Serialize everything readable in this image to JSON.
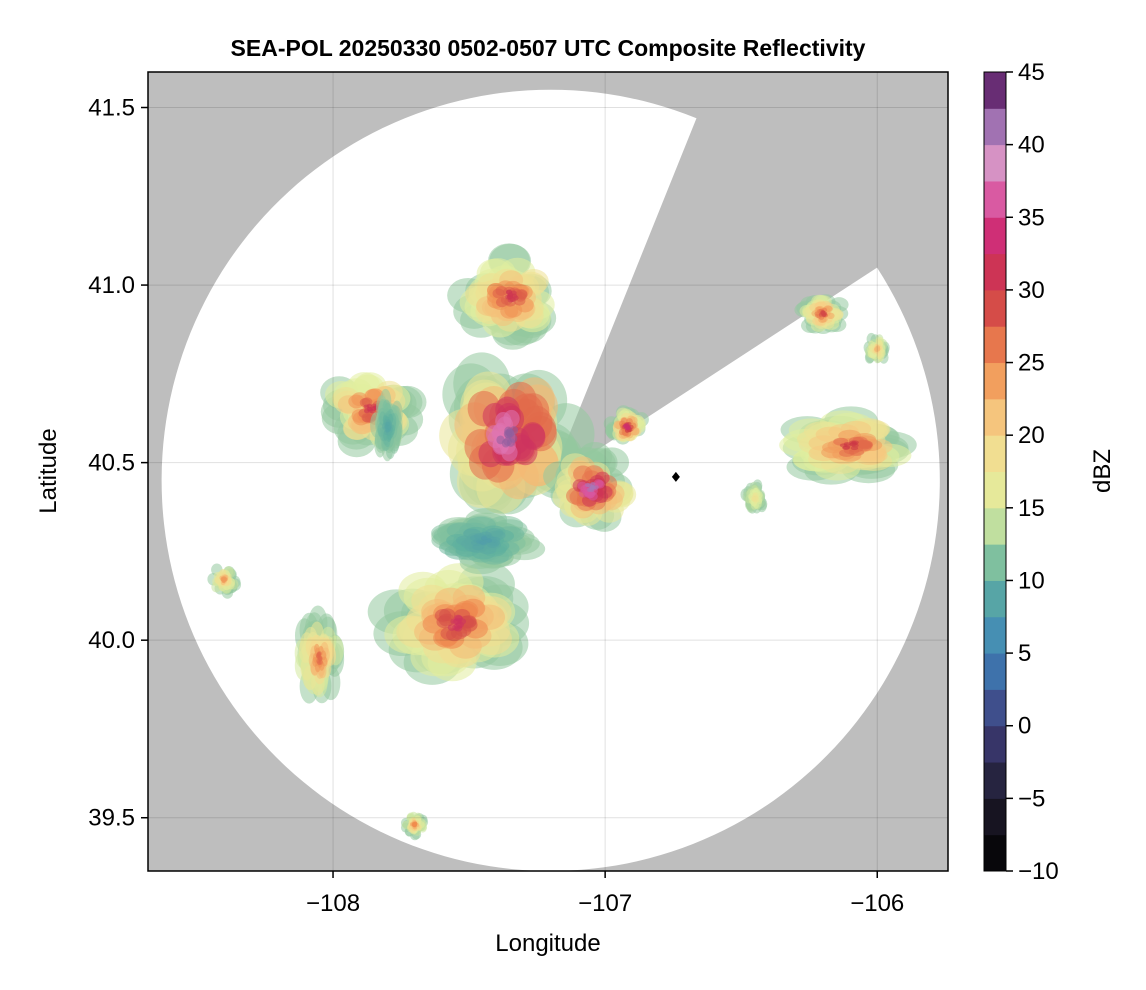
{
  "chart_data": {
    "type": "heatmap",
    "title": "SEA-POL 20250330 0502-0507 UTC Composite Reflectivity",
    "xlabel": "Longitude",
    "ylabel": "Latitude",
    "xlim": [
      -108.68,
      -105.74
    ],
    "ylim": [
      39.35,
      41.6
    ],
    "x_ticks": [
      -108,
      -107,
      -106
    ],
    "x_tick_labels": [
      "−108",
      "−107",
      "−106"
    ],
    "y_ticks": [
      39.5,
      40.0,
      40.5,
      41.0,
      41.5
    ],
    "y_tick_labels": [
      "39.5",
      "40.0",
      "40.5",
      "41.0",
      "41.5"
    ],
    "grid": true,
    "background_color": "#bebebe",
    "coverage_color": "#ffffff",
    "radar": {
      "center_lon": -107.2,
      "center_lat": 40.45,
      "range_lon_deg": 1.43,
      "range_lat_deg": 1.1,
      "blocked_sector_deg": [
        22,
        57
      ]
    },
    "colorbar": {
      "label": "dBZ",
      "min": -10,
      "max": 45,
      "step": 2.5,
      "ticks": [
        -10,
        -5,
        0,
        5,
        10,
        15,
        20,
        25,
        30,
        35,
        40,
        45
      ],
      "tick_labels": [
        "−10",
        "−5",
        "0",
        "5",
        "10",
        "15",
        "20",
        "25",
        "30",
        "35",
        "40",
        "45"
      ],
      "colormap": "custom-spectral",
      "stops": [
        {
          "v": -10,
          "c": "#000000"
        },
        {
          "v": -5,
          "c": "#1e1b2c"
        },
        {
          "v": 0,
          "c": "#3f3d7c"
        },
        {
          "v": 5,
          "c": "#3e84ba"
        },
        {
          "v": 10,
          "c": "#5fb09f"
        },
        {
          "v": 15,
          "c": "#e0ef9f"
        },
        {
          "v": 20,
          "c": "#f6d88c"
        },
        {
          "v": 25,
          "c": "#f08c4f"
        },
        {
          "v": 30,
          "c": "#cc3745"
        },
        {
          "v": 35,
          "c": "#d02c86"
        },
        {
          "v": 38,
          "c": "#e69ac8"
        },
        {
          "v": 41,
          "c": "#a779b8"
        },
        {
          "v": 45,
          "c": "#4c0b55"
        }
      ]
    },
    "echo_regions": [
      {
        "lon": -107.36,
        "lat": 40.58,
        "rlon": 0.3,
        "rlat": 0.25,
        "peak_dbz": 42
      },
      {
        "lon": -107.05,
        "lat": 40.43,
        "rlon": 0.18,
        "rlat": 0.12,
        "peak_dbz": 41
      },
      {
        "lon": -107.35,
        "lat": 40.97,
        "rlon": 0.22,
        "rlat": 0.14,
        "peak_dbz": 31
      },
      {
        "lon": -107.55,
        "lat": 40.05,
        "rlon": 0.3,
        "rlat": 0.18,
        "peak_dbz": 32
      },
      {
        "lon": -107.86,
        "lat": 40.65,
        "rlon": 0.2,
        "rlat": 0.13,
        "peak_dbz": 31
      },
      {
        "lon": -107.45,
        "lat": 40.28,
        "rlon": 0.22,
        "rlat": 0.09,
        "peak_dbz": 8
      },
      {
        "lon": -107.8,
        "lat": 40.6,
        "rlon": 0.06,
        "rlat": 0.1,
        "peak_dbz": 9
      },
      {
        "lon": -106.1,
        "lat": 40.55,
        "rlon": 0.28,
        "rlat": 0.11,
        "peak_dbz": 30
      },
      {
        "lon": -106.2,
        "lat": 40.92,
        "rlon": 0.1,
        "rlat": 0.06,
        "peak_dbz": 29
      },
      {
        "lon": -106.0,
        "lat": 40.82,
        "rlon": 0.05,
        "rlat": 0.05,
        "peak_dbz": 22
      },
      {
        "lon": -106.92,
        "lat": 40.6,
        "rlon": 0.08,
        "rlat": 0.06,
        "peak_dbz": 33
      },
      {
        "lon": -108.05,
        "lat": 39.95,
        "rlon": 0.1,
        "rlat": 0.14,
        "peak_dbz": 27
      },
      {
        "lon": -108.4,
        "lat": 40.17,
        "rlon": 0.06,
        "rlat": 0.05,
        "peak_dbz": 24
      },
      {
        "lon": -107.7,
        "lat": 39.48,
        "rlon": 0.05,
        "rlat": 0.04,
        "peak_dbz": 25
      },
      {
        "lon": -106.45,
        "lat": 40.4,
        "rlon": 0.05,
        "rlat": 0.05,
        "peak_dbz": 18
      }
    ],
    "markers": [
      {
        "lon": -106.74,
        "lat": 40.46,
        "symbol": "diamond"
      }
    ]
  }
}
